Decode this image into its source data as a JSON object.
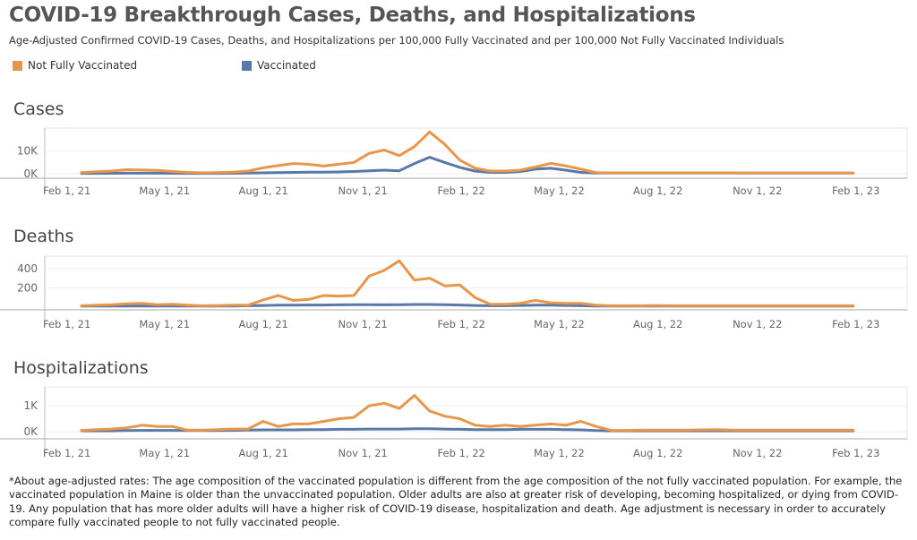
{
  "title": "COVID-19 Breakthrough Cases, Deaths, and Hospitalizations",
  "subtitle": "Age-Adjusted Confirmed COVID-19 Cases, Deaths, and Hospitalizations per 100,000 Fully Vaccinated and per 100,000 Not Fully Vaccinated Individuals",
  "legend": [
    {
      "label": "Not Fully Vaccinated",
      "color": "#E8964A"
    },
    {
      "label": "Vaccinated",
      "color": "#5878A8"
    }
  ],
  "footnote": "*About age-adjusted rates: The age composition of the vaccinated population is different from the age composition of the not fully vaccinated population. For example, the vaccinated population in Maine is older than the unvaccinated population. Older adults are also at greater risk of developing, becoming hospitalized, or dying from COVID-19. Any population that has more older adults will have a higher risk of COVID-19 disease, hospitalization and death. Age adjustment is necessary in order to accurately compare fully vaccinated people to not fully vaccinated people.",
  "chart_data": {
    "type": "line",
    "x_ticks": [
      "Feb 1, 21",
      "May 1, 21",
      "Aug 1, 21",
      "Nov 1, 21",
      "Feb 1, 22",
      "May 1, 22",
      "Aug 1, 22",
      "Nov 1, 22",
      "Feb 1, 23"
    ],
    "x_tick_dates": [
      "2021-02-01",
      "2021-05-01",
      "2021-08-01",
      "2021-11-01",
      "2022-02-01",
      "2022-05-01",
      "2022-08-01",
      "2022-11-01",
      "2023-02-01"
    ],
    "x": [
      "2021-03-07",
      "2021-03-21",
      "2021-04-04",
      "2021-04-18",
      "2021-05-02",
      "2021-05-16",
      "2021-05-30",
      "2021-06-13",
      "2021-06-27",
      "2021-07-11",
      "2021-07-25",
      "2021-08-08",
      "2021-08-22",
      "2021-09-05",
      "2021-09-19",
      "2021-10-03",
      "2021-10-17",
      "2021-10-31",
      "2021-11-14",
      "2021-11-28",
      "2021-12-12",
      "2021-12-26",
      "2022-01-09",
      "2022-01-23",
      "2022-02-06",
      "2022-02-20",
      "2022-03-06",
      "2022-03-20",
      "2022-04-03",
      "2022-04-17",
      "2022-05-01",
      "2022-05-15",
      "2022-05-29",
      "2022-06-12",
      "2022-06-26",
      "2022-07-10",
      "2022-07-24",
      "2022-08-07",
      "2022-08-21",
      "2022-09-04",
      "2022-09-18",
      "2022-10-02",
      "2022-10-16",
      "2022-10-30",
      "2022-11-13",
      "2022-11-27",
      "2022-12-11",
      "2022-12-25",
      "2023-01-08",
      "2023-01-22",
      "2023-02-05",
      "2023-02-19"
    ],
    "legend_placement": "top-left",
    "grid": "horizontal",
    "panels": [
      {
        "title": "Cases",
        "y_ticks": [
          {
            "value": 0,
            "label": "0K"
          },
          {
            "value": 10000,
            "label": "10K"
          }
        ],
        "ylim": [
          0,
          19000
        ],
        "series": [
          {
            "name": "Not Fully Vaccinated",
            "values": [
              500,
              900,
              1200,
              1800,
              1700,
              1500,
              1000,
              600,
              400,
              500,
              700,
              1200,
              2600,
              3600,
              4500,
              4200,
              3400,
              4200,
              5000,
              9000,
              10500,
              8000,
              12000,
              18500,
              13000,
              6000,
              2500,
              1200,
              1200,
              1600,
              3000,
              4600,
              3500,
              2000,
              500,
              400,
              400,
              400,
              400,
              400,
              400,
              400,
              400,
              400,
              350,
              350,
              350,
              350,
              350,
              350,
              350,
              350
            ]
          },
          {
            "name": "Vaccinated",
            "values": [
              150,
              150,
              200,
              250,
              250,
              250,
              200,
              150,
              150,
              150,
              200,
              300,
              400,
              500,
              600,
              700,
              700,
              800,
              1000,
              1300,
              1600,
              1300,
              4500,
              7300,
              5000,
              2800,
              1200,
              600,
              600,
              1000,
              2000,
              2400,
              1600,
              600,
              300,
              300,
              300,
              300,
              300,
              300,
              300,
              300,
              300,
              300,
              300,
              300,
              300,
              300,
              300,
              300,
              300,
              300
            ]
          }
        ]
      },
      {
        "title": "Deaths",
        "y_ticks": [
          {
            "value": 200,
            "label": "200"
          },
          {
            "value": 400,
            "label": "400"
          }
        ],
        "ylim": [
          0,
          500
        ],
        "series": [
          {
            "name": "Not Fully Vaccinated",
            "values": [
              15,
              20,
              25,
              35,
              40,
              25,
              30,
              20,
              15,
              18,
              20,
              20,
              75,
              120,
              70,
              80,
              120,
              115,
              120,
              320,
              380,
              480,
              280,
              300,
              220,
              230,
              100,
              30,
              30,
              40,
              70,
              45,
              40,
              40,
              20,
              15,
              15,
              15,
              18,
              15,
              15,
              15,
              15,
              15,
              15,
              15,
              15,
              15,
              15,
              15,
              15,
              15
            ]
          },
          {
            "name": "Vaccinated",
            "values": [
              12,
              12,
              12,
              12,
              12,
              12,
              12,
              12,
              12,
              12,
              12,
              15,
              18,
              20,
              20,
              22,
              22,
              24,
              25,
              25,
              24,
              25,
              28,
              28,
              25,
              22,
              18,
              15,
              15,
              18,
              20,
              20,
              18,
              15,
              12,
              12,
              12,
              12,
              12,
              12,
              12,
              12,
              12,
              12,
              12,
              12,
              12,
              12,
              12,
              12,
              12,
              12
            ]
          }
        ]
      },
      {
        "title": "Hospitalizations",
        "y_ticks": [
          {
            "value": 0,
            "label": "0K"
          },
          {
            "value": 1000,
            "label": "1K"
          }
        ],
        "ylim": [
          0,
          1700
        ],
        "series": [
          {
            "name": "Not Fully Vaccinated",
            "values": [
              50,
              80,
              100,
              150,
              250,
              200,
              200,
              60,
              60,
              80,
              100,
              100,
              400,
              200,
              300,
              300,
              400,
              500,
              550,
              1000,
              1100,
              900,
              1400,
              800,
              600,
              500,
              250,
              200,
              250,
              200,
              250,
              300,
              250,
              400,
              200,
              50,
              50,
              60,
              60,
              60,
              60,
              70,
              80,
              60,
              60,
              60,
              60,
              60,
              60,
              60,
              60,
              60
            ]
          },
          {
            "name": "Vaccinated",
            "values": [
              30,
              30,
              30,
              40,
              50,
              50,
              50,
              40,
              40,
              40,
              50,
              60,
              70,
              70,
              70,
              80,
              80,
              90,
              90,
              100,
              100,
              100,
              110,
              110,
              100,
              90,
              80,
              80,
              80,
              90,
              90,
              90,
              80,
              70,
              40,
              30,
              30,
              30,
              30,
              30,
              30,
              30,
              30,
              30,
              30,
              30,
              30,
              30,
              30,
              30,
              30,
              30
            ]
          }
        ]
      }
    ]
  }
}
